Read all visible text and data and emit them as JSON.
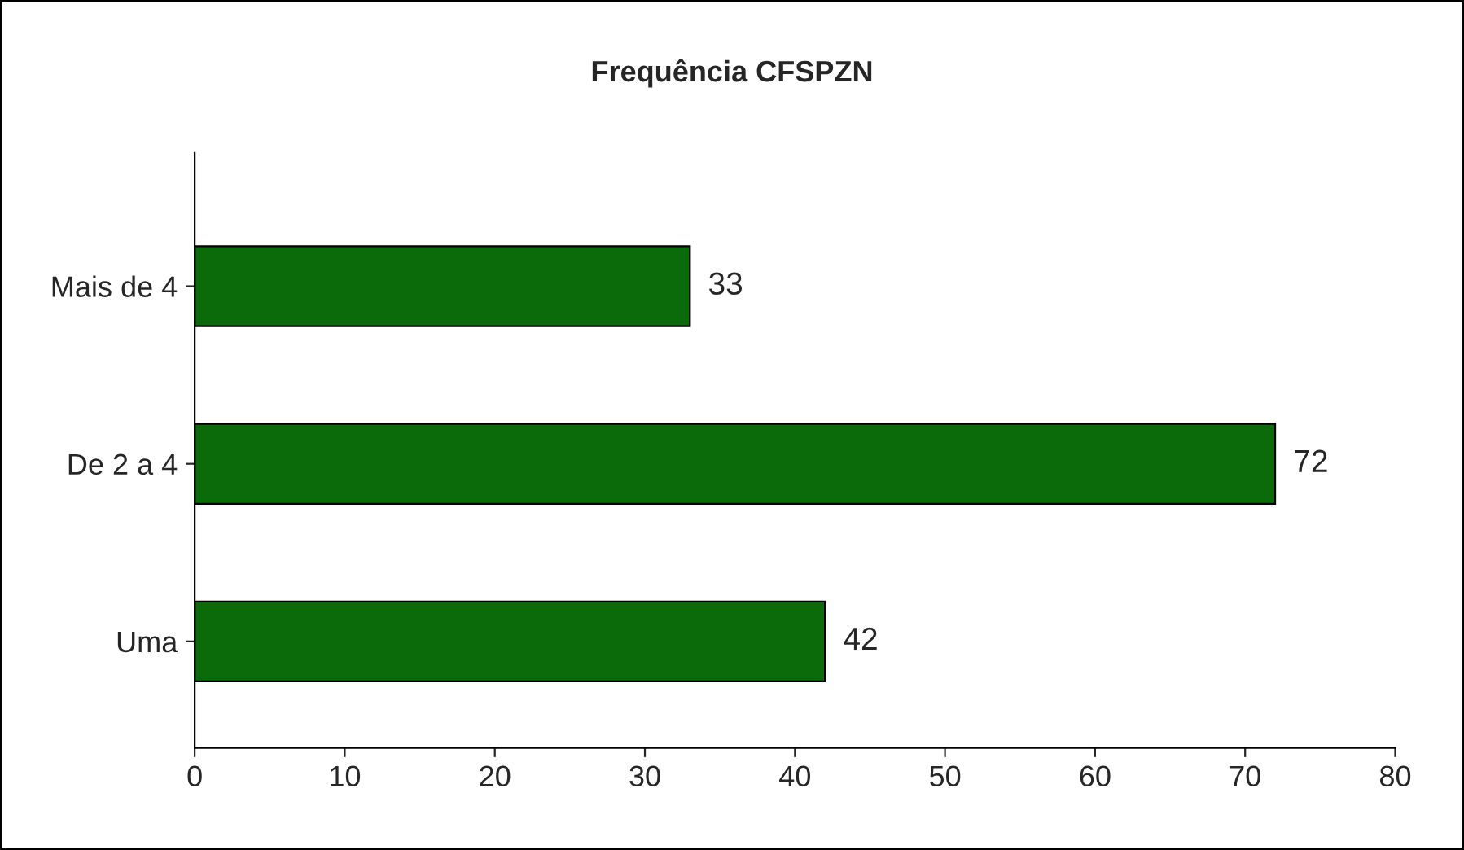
{
  "chart_data": {
    "type": "bar",
    "orientation": "horizontal",
    "title": "Frequência CFSPZN",
    "categories": [
      "Mais de 4",
      "De 2 a 4",
      "Uma"
    ],
    "values": [
      33,
      72,
      42
    ],
    "color": "#0b6b0b",
    "xlim": [
      0,
      80
    ],
    "xticks": [
      0,
      10,
      20,
      30,
      40,
      50,
      60,
      70,
      80
    ],
    "data_labels": true,
    "grid": false,
    "legend": false
  }
}
